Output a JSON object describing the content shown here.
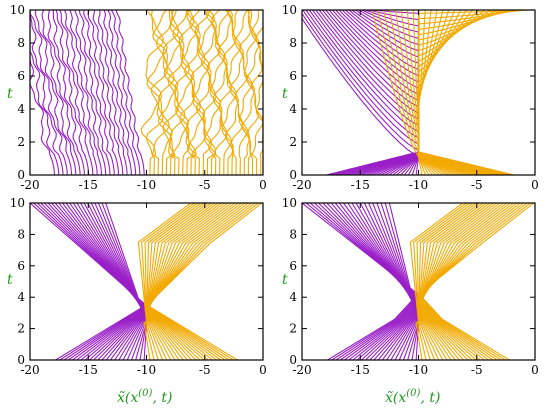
{
  "colors": {
    "left": "#9a1fc8",
    "right": "#f2a900",
    "axis_label": "#1e9a1e"
  },
  "figure": {
    "ylabel_text": "t",
    "xlabel_text": "x̃(x",
    "xlabel_sup": "(0)",
    "xlabel_tail": ", t)"
  },
  "chart_data": [
    {
      "type": "line",
      "panel": "top-left",
      "xlim": [
        -20,
        0
      ],
      "ylim": [
        0,
        10
      ],
      "xticks": [
        -20,
        -15,
        -10,
        -5,
        0
      ],
      "yticks": [
        0,
        2,
        4,
        6,
        8,
        10
      ],
      "ylabel": "t",
      "xlabel": "",
      "family": "chaotic",
      "series": [
        {
          "group": "left",
          "count": 22,
          "x0_range": [
            -17.9,
            -10.2
          ],
          "trend": "up-left",
          "end_range": [
            -21,
            -12.5
          ]
        },
        {
          "group": "right",
          "count": 28,
          "x0_range": [
            -9.7,
            -0.2
          ],
          "trend": "up-right",
          "end_range": [
            -9.3,
            -0.1
          ]
        }
      ]
    },
    {
      "type": "line",
      "panel": "top-right",
      "xlim": [
        -20,
        0
      ],
      "ylim": [
        0,
        10
      ],
      "xticks": [
        -20,
        -15,
        -10,
        -5,
        0
      ],
      "yticks": [
        0,
        2,
        4,
        6,
        8,
        10
      ],
      "ylabel": "t",
      "xlabel": "",
      "family": "converge",
      "series": [
        {
          "group": "left",
          "count": 24,
          "x0_range": [
            -17.9,
            -10.2
          ],
          "collision_x": -10,
          "collision_t": 1.1,
          "peel_t": [
            1.1,
            9.8
          ],
          "end_range": [
            -20.5,
            -14
          ]
        },
        {
          "group": "right",
          "count": 28,
          "x0_range": [
            -9.7,
            -1.8
          ],
          "collision_x": -10,
          "collision_t": 1.1,
          "peel_t": [
            1.1,
            9.8
          ],
          "end_range": [
            -14,
            -0.3
          ]
        }
      ]
    },
    {
      "type": "line",
      "panel": "bottom-left",
      "xlim": [
        -20,
        0
      ],
      "ylim": [
        0,
        10
      ],
      "xticks": [
        -20,
        -15,
        -10,
        -5,
        0
      ],
      "yticks": [
        0,
        2,
        4,
        6,
        8,
        10
      ],
      "ylabel": "t",
      "xlabel": "x̃(x(0), t)",
      "family": "vshape",
      "series": [
        {
          "group": "left",
          "count": 22,
          "x0_range": [
            -17.8,
            -10.2
          ],
          "turn_t": 2.4,
          "collide_t": [
            2.4,
            3.5
          ],
          "collision_x": -10,
          "end_range": [
            -20,
            -13.5
          ]
        },
        {
          "group": "right",
          "count": 22,
          "x0_range": [
            -9.7,
            -2.2
          ],
          "turn_t": 2.4,
          "second_turn_t": 7.4,
          "collide_t": [
            2.4,
            3.5
          ],
          "collision_x": -10,
          "end_range": [
            -6.2,
            -0.1
          ]
        }
      ]
    },
    {
      "type": "line",
      "panel": "bottom-right",
      "xlim": [
        -20,
        0
      ],
      "ylim": [
        0,
        10
      ],
      "xticks": [
        -20,
        -15,
        -10,
        -5,
        0
      ],
      "yticks": [
        0,
        2,
        4,
        6,
        8,
        10
      ],
      "ylabel": "t",
      "xlabel": "x̃(x(0), t)",
      "family": "vshape",
      "series": [
        {
          "group": "left",
          "count": 22,
          "x0_range": [
            -17.8,
            -10.2
          ],
          "turn_t": 2.4,
          "collide_t": [
            2.4,
            4.2
          ],
          "collision_x": -10,
          "end_range": [
            -20,
            -12.5
          ]
        },
        {
          "group": "right",
          "count": 22,
          "x0_range": [
            -9.7,
            -2.2
          ],
          "turn_t": 2.4,
          "second_turn_t": 7.4,
          "collide_t": [
            2.4,
            4.2
          ],
          "collision_x": -10,
          "end_range": [
            -6.2,
            -0.1
          ]
        }
      ]
    }
  ]
}
